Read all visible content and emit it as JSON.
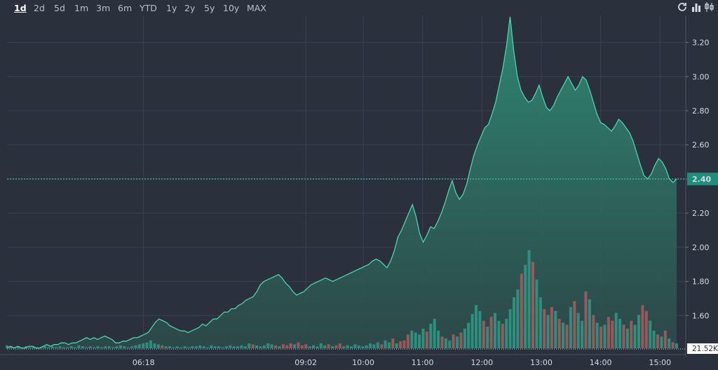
{
  "toolbar": {
    "ranges": [
      "1d",
      "2d",
      "5d",
      "1m",
      "3m",
      "6m",
      "YTD",
      "1y",
      "2y",
      "5y",
      "10y",
      "MAX"
    ],
    "active_range": "1d",
    "icons": [
      "refresh-icon",
      "bar-chart-icon",
      "candlestick-icon"
    ]
  },
  "chart_data": {
    "type": "area",
    "x_ticks": [
      "06:18",
      "09:02",
      "10:00",
      "11:00",
      "12:00",
      "13:00",
      "14:00",
      "15:00"
    ],
    "y_ticks": [
      "1.60",
      "1.80",
      "2.00",
      "2.20",
      "2.40",
      "2.60",
      "2.80",
      "3.00",
      "3.20"
    ],
    "ylim": [
      1.4,
      3.35
    ],
    "last_price": "2.40",
    "volume_marker": "21.52K",
    "grid": true,
    "colors": {
      "background": "#2a303c",
      "grid": "#3a4150",
      "line": "#47d6b0",
      "area_top": "#2f8a76",
      "area_bottom": "#2c4a4a",
      "volume_up": "#2b9c87",
      "volume_down": "#b4585a",
      "price_label_bg": "#1e8f7a",
      "price_label_text": "#ffffff"
    },
    "price_series": [
      1.41,
      1.42,
      1.41,
      1.42,
      1.41,
      1.41,
      1.42,
      1.42,
      1.41,
      1.41,
      1.42,
      1.43,
      1.42,
      1.43,
      1.43,
      1.44,
      1.44,
      1.43,
      1.44,
      1.44,
      1.45,
      1.46,
      1.47,
      1.46,
      1.47,
      1.46,
      1.47,
      1.48,
      1.47,
      1.46,
      1.44,
      1.44,
      1.45,
      1.45,
      1.46,
      1.47,
      1.47,
      1.48,
      1.49,
      1.5,
      1.53,
      1.56,
      1.58,
      1.57,
      1.56,
      1.54,
      1.53,
      1.52,
      1.51,
      1.51,
      1.5,
      1.51,
      1.52,
      1.53,
      1.55,
      1.54,
      1.56,
      1.58,
      1.58,
      1.6,
      1.62,
      1.62,
      1.64,
      1.64,
      1.66,
      1.67,
      1.69,
      1.7,
      1.71,
      1.74,
      1.78,
      1.8,
      1.81,
      1.82,
      1.83,
      1.84,
      1.82,
      1.79,
      1.77,
      1.74,
      1.72,
      1.73,
      1.74,
      1.76,
      1.78,
      1.79,
      1.8,
      1.81,
      1.82,
      1.81,
      1.8,
      1.81,
      1.82,
      1.83,
      1.84,
      1.85,
      1.86,
      1.87,
      1.88,
      1.89,
      1.9,
      1.92,
      1.93,
      1.92,
      1.9,
      1.88,
      1.92,
      1.98,
      2.06,
      2.1,
      2.15,
      2.2,
      2.25,
      2.18,
      2.08,
      2.03,
      2.07,
      2.12,
      2.11,
      2.15,
      2.2,
      2.26,
      2.33,
      2.39,
      2.32,
      2.28,
      2.31,
      2.37,
      2.46,
      2.54,
      2.6,
      2.65,
      2.7,
      2.72,
      2.78,
      2.85,
      2.95,
      3.05,
      3.18,
      3.35,
      3.15,
      3.0,
      2.92,
      2.88,
      2.85,
      2.86,
      2.9,
      2.95,
      2.88,
      2.82,
      2.8,
      2.83,
      2.88,
      2.92,
      2.96,
      3.0,
      2.96,
      2.92,
      2.95,
      3.0,
      2.98,
      2.92,
      2.85,
      2.78,
      2.73,
      2.72,
      2.7,
      2.68,
      2.71,
      2.75,
      2.73,
      2.7,
      2.67,
      2.62,
      2.55,
      2.48,
      2.42,
      2.4,
      2.43,
      2.48,
      2.52,
      2.5,
      2.46,
      2.4,
      2.38,
      2.4
    ],
    "volume_series": [
      {
        "v": 0.03,
        "d": "up"
      },
      {
        "v": 0.02,
        "d": "up"
      },
      {
        "v": 0.01,
        "d": "up"
      },
      {
        "v": 0.02,
        "d": "up"
      },
      {
        "v": 0.01,
        "d": "up"
      },
      {
        "v": 0.02,
        "d": "up"
      },
      {
        "v": 0.01,
        "d": "up"
      },
      {
        "v": 0.02,
        "d": "up"
      },
      {
        "v": 0.01,
        "d": "up"
      },
      {
        "v": 0.01,
        "d": "up"
      },
      {
        "v": 0.02,
        "d": "up"
      },
      {
        "v": 0.01,
        "d": "up"
      },
      {
        "v": 0.02,
        "d": "up"
      },
      {
        "v": 0.01,
        "d": "up"
      },
      {
        "v": 0.02,
        "d": "up"
      },
      {
        "v": 0.01,
        "d": "up"
      },
      {
        "v": 0.01,
        "d": "up"
      },
      {
        "v": 0.02,
        "d": "up"
      },
      {
        "v": 0.01,
        "d": "up"
      },
      {
        "v": 0.03,
        "d": "up"
      },
      {
        "v": 0.02,
        "d": "up"
      },
      {
        "v": 0.01,
        "d": "up"
      },
      {
        "v": 0.02,
        "d": "up"
      },
      {
        "v": 0.01,
        "d": "up"
      },
      {
        "v": 0.02,
        "d": "up"
      },
      {
        "v": 0.01,
        "d": "up"
      },
      {
        "v": 0.02,
        "d": "up"
      },
      {
        "v": 0.02,
        "d": "up"
      },
      {
        "v": 0.01,
        "d": "up"
      },
      {
        "v": 0.02,
        "d": "up"
      },
      {
        "v": 0.03,
        "d": "up"
      },
      {
        "v": 0.02,
        "d": "up"
      },
      {
        "v": 0.01,
        "d": "up"
      },
      {
        "v": 0.02,
        "d": "up"
      },
      {
        "v": 0.03,
        "d": "up"
      },
      {
        "v": 0.04,
        "d": "up"
      },
      {
        "v": 0.05,
        "d": "up"
      },
      {
        "v": 0.06,
        "d": "up"
      },
      {
        "v": 0.08,
        "d": "up"
      },
      {
        "v": 0.05,
        "d": "up"
      },
      {
        "v": 0.04,
        "d": "up"
      },
      {
        "v": 0.03,
        "d": "down"
      },
      {
        "v": 0.02,
        "d": "up"
      },
      {
        "v": 0.02,
        "d": "up"
      },
      {
        "v": 0.01,
        "d": "up"
      },
      {
        "v": 0.02,
        "d": "up"
      },
      {
        "v": 0.01,
        "d": "up"
      },
      {
        "v": 0.02,
        "d": "up"
      },
      {
        "v": 0.01,
        "d": "up"
      },
      {
        "v": 0.02,
        "d": "up"
      },
      {
        "v": 0.02,
        "d": "up"
      },
      {
        "v": 0.03,
        "d": "up"
      },
      {
        "v": 0.02,
        "d": "up"
      },
      {
        "v": 0.01,
        "d": "up"
      },
      {
        "v": 0.03,
        "d": "up"
      },
      {
        "v": 0.02,
        "d": "up"
      },
      {
        "v": 0.02,
        "d": "up"
      },
      {
        "v": 0.01,
        "d": "up"
      },
      {
        "v": 0.02,
        "d": "up"
      },
      {
        "v": 0.03,
        "d": "up"
      },
      {
        "v": 0.02,
        "d": "up"
      },
      {
        "v": 0.02,
        "d": "up"
      },
      {
        "v": 0.03,
        "d": "up"
      },
      {
        "v": 0.02,
        "d": "up"
      },
      {
        "v": 0.05,
        "d": "up"
      },
      {
        "v": 0.04,
        "d": "down"
      },
      {
        "v": 0.03,
        "d": "up"
      },
      {
        "v": 0.02,
        "d": "up"
      },
      {
        "v": 0.03,
        "d": "up"
      },
      {
        "v": 0.05,
        "d": "up"
      },
      {
        "v": 0.04,
        "d": "up"
      },
      {
        "v": 0.03,
        "d": "down"
      },
      {
        "v": 0.02,
        "d": "up"
      },
      {
        "v": 0.04,
        "d": "down"
      },
      {
        "v": 0.03,
        "d": "down"
      },
      {
        "v": 0.05,
        "d": "down"
      },
      {
        "v": 0.04,
        "d": "up"
      },
      {
        "v": 0.06,
        "d": "down"
      },
      {
        "v": 0.03,
        "d": "down"
      },
      {
        "v": 0.04,
        "d": "down"
      },
      {
        "v": 0.02,
        "d": "up"
      },
      {
        "v": 0.03,
        "d": "up"
      },
      {
        "v": 0.02,
        "d": "up"
      },
      {
        "v": 0.05,
        "d": "up"
      },
      {
        "v": 0.03,
        "d": "up"
      },
      {
        "v": 0.04,
        "d": "down"
      },
      {
        "v": 0.02,
        "d": "up"
      },
      {
        "v": 0.03,
        "d": "down"
      },
      {
        "v": 0.05,
        "d": "down"
      },
      {
        "v": 0.02,
        "d": "up"
      },
      {
        "v": 0.03,
        "d": "up"
      },
      {
        "v": 0.02,
        "d": "up"
      },
      {
        "v": 0.04,
        "d": "up"
      },
      {
        "v": 0.03,
        "d": "up"
      },
      {
        "v": 0.02,
        "d": "up"
      },
      {
        "v": 0.03,
        "d": "up"
      },
      {
        "v": 0.05,
        "d": "up"
      },
      {
        "v": 0.04,
        "d": "up"
      },
      {
        "v": 0.06,
        "d": "up"
      },
      {
        "v": 0.04,
        "d": "down"
      },
      {
        "v": 0.08,
        "d": "up"
      },
      {
        "v": 0.06,
        "d": "up"
      },
      {
        "v": 0.1,
        "d": "down"
      },
      {
        "v": 0.05,
        "d": "up"
      },
      {
        "v": 0.07,
        "d": "down"
      },
      {
        "v": 0.08,
        "d": "down"
      },
      {
        "v": 0.14,
        "d": "down"
      },
      {
        "v": 0.18,
        "d": "up"
      },
      {
        "v": 0.16,
        "d": "up"
      },
      {
        "v": 0.14,
        "d": "up"
      },
      {
        "v": 0.2,
        "d": "up"
      },
      {
        "v": 0.17,
        "d": "down"
      },
      {
        "v": 0.25,
        "d": "up"
      },
      {
        "v": 0.3,
        "d": "up"
      },
      {
        "v": 0.18,
        "d": "up"
      },
      {
        "v": 0.12,
        "d": "down"
      },
      {
        "v": 0.1,
        "d": "up"
      },
      {
        "v": 0.08,
        "d": "up"
      },
      {
        "v": 0.14,
        "d": "down"
      },
      {
        "v": 0.12,
        "d": "up"
      },
      {
        "v": 0.16,
        "d": "down"
      },
      {
        "v": 0.2,
        "d": "up"
      },
      {
        "v": 0.26,
        "d": "up"
      },
      {
        "v": 0.35,
        "d": "up"
      },
      {
        "v": 0.44,
        "d": "up"
      },
      {
        "v": 0.38,
        "d": "up"
      },
      {
        "v": 0.28,
        "d": "down"
      },
      {
        "v": 0.22,
        "d": "up"
      },
      {
        "v": 0.32,
        "d": "down"
      },
      {
        "v": 0.36,
        "d": "up"
      },
      {
        "v": 0.28,
        "d": "up"
      },
      {
        "v": 0.25,
        "d": "down"
      },
      {
        "v": 0.3,
        "d": "up"
      },
      {
        "v": 0.4,
        "d": "up"
      },
      {
        "v": 0.52,
        "d": "up"
      },
      {
        "v": 0.6,
        "d": "up"
      },
      {
        "v": 0.76,
        "d": "down"
      },
      {
        "v": 0.85,
        "d": "up"
      },
      {
        "v": 1.0,
        "d": "up"
      },
      {
        "v": 0.88,
        "d": "down"
      },
      {
        "v": 0.7,
        "d": "up"
      },
      {
        "v": 0.52,
        "d": "up"
      },
      {
        "v": 0.4,
        "d": "down"
      },
      {
        "v": 0.34,
        "d": "up"
      },
      {
        "v": 0.42,
        "d": "down"
      },
      {
        "v": 0.38,
        "d": "up"
      },
      {
        "v": 0.3,
        "d": "down"
      },
      {
        "v": 0.26,
        "d": "up"
      },
      {
        "v": 0.24,
        "d": "down"
      },
      {
        "v": 0.42,
        "d": "up"
      },
      {
        "v": 0.48,
        "d": "down"
      },
      {
        "v": 0.36,
        "d": "up"
      },
      {
        "v": 0.28,
        "d": "up"
      },
      {
        "v": 0.58,
        "d": "down"
      },
      {
        "v": 0.5,
        "d": "up"
      },
      {
        "v": 0.34,
        "d": "down"
      },
      {
        "v": 0.26,
        "d": "up"
      },
      {
        "v": 0.22,
        "d": "down"
      },
      {
        "v": 0.24,
        "d": "up"
      },
      {
        "v": 0.32,
        "d": "down"
      },
      {
        "v": 0.28,
        "d": "down"
      },
      {
        "v": 0.36,
        "d": "up"
      },
      {
        "v": 0.3,
        "d": "up"
      },
      {
        "v": 0.24,
        "d": "down"
      },
      {
        "v": 0.2,
        "d": "up"
      },
      {
        "v": 0.28,
        "d": "down"
      },
      {
        "v": 0.24,
        "d": "up"
      },
      {
        "v": 0.34,
        "d": "up"
      },
      {
        "v": 0.44,
        "d": "down"
      },
      {
        "v": 0.38,
        "d": "down"
      },
      {
        "v": 0.28,
        "d": "up"
      },
      {
        "v": 0.18,
        "d": "up"
      },
      {
        "v": 0.14,
        "d": "down"
      },
      {
        "v": 0.12,
        "d": "up"
      },
      {
        "v": 0.18,
        "d": "down"
      },
      {
        "v": 0.1,
        "d": "up"
      },
      {
        "v": 0.06,
        "d": "down"
      },
      {
        "v": 0.05,
        "d": "up"
      }
    ]
  }
}
